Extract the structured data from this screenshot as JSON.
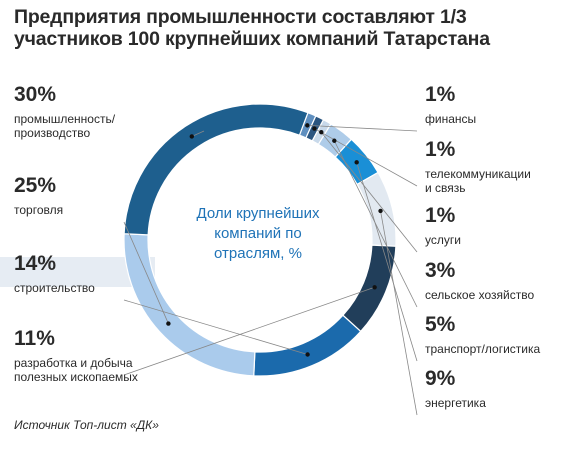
{
  "chart_data": {
    "type": "pie",
    "title": "Предприятия промышленности составляют 1/3 участников 100 крупнейших компаний Татарстана",
    "center_label": [
      "Доли крупнейших",
      "компаний по",
      "отраслям, %"
    ],
    "source": "Источник Топ-лист «ДК»",
    "slices": [
      {
        "label": [
          "финансы"
        ],
        "pct_text": "1%",
        "value": 1,
        "color": "#5f8fbf"
      },
      {
        "label": [
          "телекоммуникации",
          "и связь"
        ],
        "pct_text": "1%",
        "value": 1,
        "color": "#2a5580"
      },
      {
        "label": [
          "услуги"
        ],
        "pct_text": "1%",
        "value": 1,
        "color": "#c8d9ea"
      },
      {
        "label": [
          "сельское хозяйство"
        ],
        "pct_text": "3%",
        "value": 3,
        "color": "#aecce9"
      },
      {
        "label": [
          "транспорт/логистика"
        ],
        "pct_text": "5%",
        "value": 5,
        "color": "#1a8fd6"
      },
      {
        "label": [
          "энергетика"
        ],
        "pct_text": "9%",
        "value": 9,
        "color": "#e2e9f1"
      },
      {
        "label": [
          "разработка и добыча",
          "полезных ископаемых"
        ],
        "pct_text": "11%",
        "value": 11,
        "color": "#213e5a"
      },
      {
        "label": [
          "строительство"
        ],
        "pct_text": "14%",
        "value": 14,
        "color": "#1b6aac"
      },
      {
        "label": [
          "торговля"
        ],
        "pct_text": "25%",
        "value": 25,
        "color": "#aacbec"
      },
      {
        "label": [
          "промышленность/",
          "производство"
        ],
        "pct_text": "30%",
        "value": 30,
        "color": "#1e5f8e"
      }
    ]
  }
}
